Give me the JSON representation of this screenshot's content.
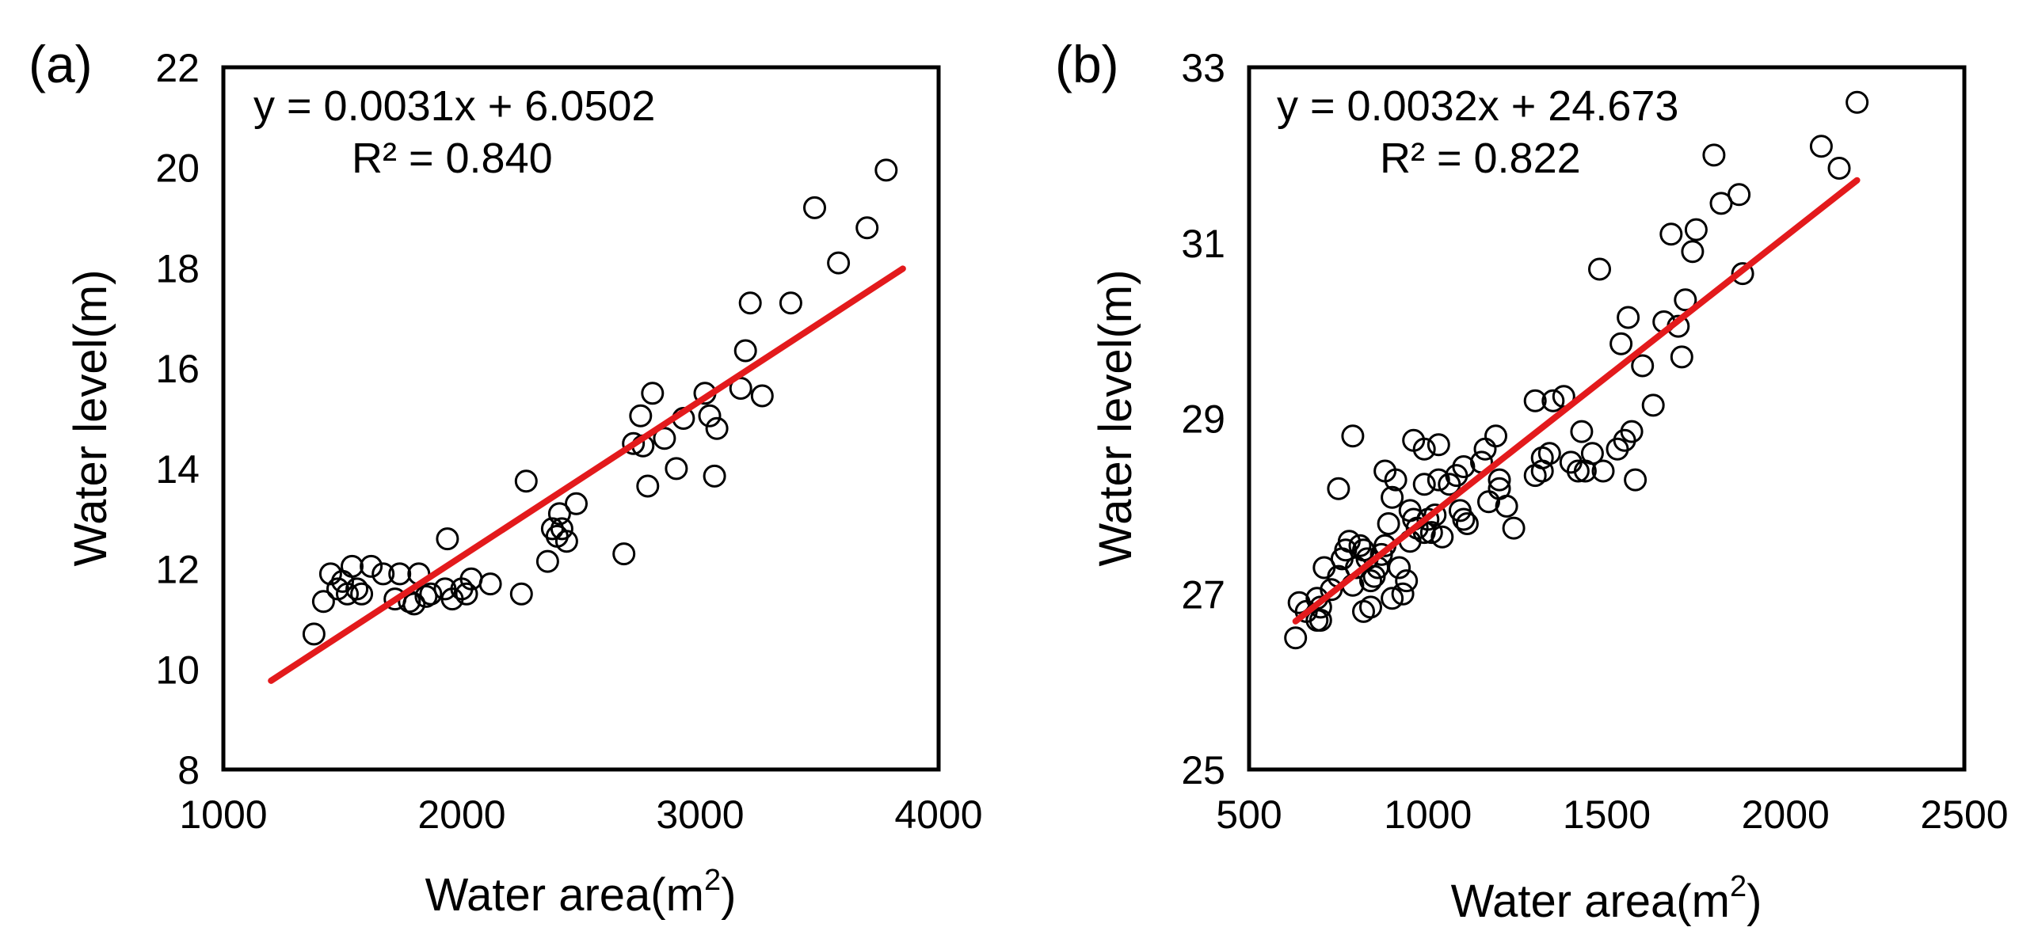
{
  "chart_data": [
    {
      "type": "scatter",
      "panel_label": "(a)",
      "equation": "y = 0.0031x + 6.0502",
      "r2": "R² = 0.840",
      "xlabel": "Water area(m",
      "xlabel_sup": "2",
      "xlabel_end": ")",
      "ylabel": "Water level(m)",
      "xlim": [
        1000,
        4000
      ],
      "ylim": [
        8,
        22
      ],
      "xticks": [
        1000,
        2000,
        3000,
        4000
      ],
      "yticks": [
        8,
        10,
        12,
        14,
        16,
        18,
        20,
        22
      ],
      "fit": {
        "slope": 0.0031,
        "intercept": 6.0502,
        "x_range": [
          1200,
          3850
        ],
        "color": "#e31a1c"
      },
      "points": [
        [
          1380,
          10.7
        ],
        [
          1420,
          11.35
        ],
        [
          1450,
          11.9
        ],
        [
          1480,
          11.6
        ],
        [
          1500,
          11.75
        ],
        [
          1520,
          11.5
        ],
        [
          1540,
          12.05
        ],
        [
          1560,
          11.6
        ],
        [
          1580,
          11.5
        ],
        [
          1620,
          12.05
        ],
        [
          1670,
          11.9
        ],
        [
          1720,
          11.4
        ],
        [
          1740,
          11.9
        ],
        [
          1780,
          11.35
        ],
        [
          1800,
          11.3
        ],
        [
          1820,
          11.9
        ],
        [
          1850,
          11.45
        ],
        [
          1870,
          11.5
        ],
        [
          1930,
          11.6
        ],
        [
          1940,
          12.6
        ],
        [
          1960,
          11.4
        ],
        [
          2000,
          11.6
        ],
        [
          2020,
          11.5
        ],
        [
          2040,
          11.8
        ],
        [
          2120,
          11.7
        ],
        [
          2250,
          11.5
        ],
        [
          2270,
          13.75
        ],
        [
          2360,
          12.15
        ],
        [
          2380,
          12.8
        ],
        [
          2400,
          12.65
        ],
        [
          2410,
          13.1
        ],
        [
          2420,
          12.8
        ],
        [
          2440,
          12.55
        ],
        [
          2480,
          13.3
        ],
        [
          2680,
          12.3
        ],
        [
          2720,
          14.5
        ],
        [
          2750,
          15.05
        ],
        [
          2760,
          14.45
        ],
        [
          2780,
          13.65
        ],
        [
          2800,
          15.5
        ],
        [
          2850,
          14.6
        ],
        [
          2900,
          14.0
        ],
        [
          2930,
          15.0
        ],
        [
          3020,
          15.5
        ],
        [
          3040,
          15.05
        ],
        [
          3060,
          13.85
        ],
        [
          3070,
          14.8
        ],
        [
          3170,
          15.6
        ],
        [
          3190,
          16.35
        ],
        [
          3210,
          17.3
        ],
        [
          3260,
          15.45
        ],
        [
          3380,
          17.3
        ],
        [
          3480,
          19.2
        ],
        [
          3580,
          18.1
        ],
        [
          3700,
          18.8
        ],
        [
          3780,
          19.95
        ]
      ]
    },
    {
      "type": "scatter",
      "panel_label": "(b)",
      "equation": "y = 0.0032x + 24.673",
      "r2": "R² = 0.822",
      "xlabel": "Water area(m",
      "xlabel_sup": "2",
      "xlabel_end": ")",
      "ylabel": "Water level(m)",
      "xlim": [
        500,
        2500
      ],
      "ylim": [
        25,
        33
      ],
      "xticks": [
        500,
        1000,
        1500,
        2000,
        2500
      ],
      "yticks": [
        25,
        27,
        29,
        31,
        33
      ],
      "fit": {
        "slope": 0.0032,
        "intercept": 24.673,
        "x_range": [
          630,
          2200
        ],
        "color": "#e31a1c"
      },
      "points": [
        [
          630,
          26.5
        ],
        [
          640,
          26.9
        ],
        [
          660,
          26.8
        ],
        [
          690,
          26.95
        ],
        [
          690,
          26.7
        ],
        [
          700,
          26.7
        ],
        [
          700,
          26.85
        ],
        [
          710,
          27.3
        ],
        [
          730,
          27.05
        ],
        [
          750,
          28.2
        ],
        [
          750,
          27.2
        ],
        [
          760,
          27.4
        ],
        [
          770,
          27.5
        ],
        [
          780,
          27.6
        ],
        [
          790,
          27.1
        ],
        [
          790,
          28.8
        ],
        [
          800,
          27.3
        ],
        [
          810,
          27.55
        ],
        [
          820,
          27.5
        ],
        [
          820,
          26.8
        ],
        [
          830,
          27.4
        ],
        [
          840,
          26.85
        ],
        [
          840,
          27.15
        ],
        [
          850,
          27.2
        ],
        [
          860,
          27.3
        ],
        [
          870,
          27.45
        ],
        [
          880,
          27.55
        ],
        [
          880,
          28.4
        ],
        [
          890,
          27.8
        ],
        [
          900,
          26.95
        ],
        [
          900,
          28.1
        ],
        [
          910,
          28.3
        ],
        [
          920,
          27.3
        ],
        [
          930,
          27.0
        ],
        [
          940,
          27.15
        ],
        [
          950,
          27.6
        ],
        [
          950,
          27.95
        ],
        [
          960,
          27.85
        ],
        [
          960,
          28.75
        ],
        [
          970,
          27.75
        ],
        [
          990,
          28.25
        ],
        [
          990,
          28.65
        ],
        [
          990,
          27.7
        ],
        [
          1000,
          27.85
        ],
        [
          1010,
          27.7
        ],
        [
          1020,
          27.9
        ],
        [
          1030,
          28.3
        ],
        [
          1030,
          28.7
        ],
        [
          1040,
          27.65
        ],
        [
          1060,
          28.25
        ],
        [
          1080,
          28.35
        ],
        [
          1090,
          27.95
        ],
        [
          1100,
          28.45
        ],
        [
          1100,
          27.85
        ],
        [
          1110,
          27.8
        ],
        [
          1150,
          28.5
        ],
        [
          1160,
          28.65
        ],
        [
          1170,
          28.05
        ],
        [
          1190,
          28.8
        ],
        [
          1200,
          28.3
        ],
        [
          1200,
          28.2
        ],
        [
          1220,
          28.0
        ],
        [
          1240,
          27.75
        ],
        [
          1300,
          29.2
        ],
        [
          1300,
          28.35
        ],
        [
          1320,
          28.55
        ],
        [
          1320,
          28.4
        ],
        [
          1340,
          28.6
        ],
        [
          1350,
          29.2
        ],
        [
          1380,
          29.25
        ],
        [
          1400,
          28.5
        ],
        [
          1420,
          28.4
        ],
        [
          1430,
          28.85
        ],
        [
          1440,
          28.4
        ],
        [
          1460,
          28.6
        ],
        [
          1480,
          30.7
        ],
        [
          1490,
          28.4
        ],
        [
          1530,
          28.65
        ],
        [
          1540,
          29.85
        ],
        [
          1550,
          28.75
        ],
        [
          1560,
          30.15
        ],
        [
          1570,
          28.85
        ],
        [
          1580,
          28.3
        ],
        [
          1600,
          29.6
        ],
        [
          1630,
          29.15
        ],
        [
          1660,
          30.1
        ],
        [
          1680,
          31.1
        ],
        [
          1700,
          30.05
        ],
        [
          1710,
          29.7
        ],
        [
          1720,
          30.35
        ],
        [
          1740,
          30.9
        ],
        [
          1750,
          31.15
        ],
        [
          1800,
          32.0
        ],
        [
          1820,
          31.45
        ],
        [
          1870,
          31.55
        ],
        [
          1880,
          30.65
        ],
        [
          2100,
          32.1
        ],
        [
          2150,
          31.85
        ],
        [
          2200,
          32.6
        ]
      ]
    }
  ]
}
